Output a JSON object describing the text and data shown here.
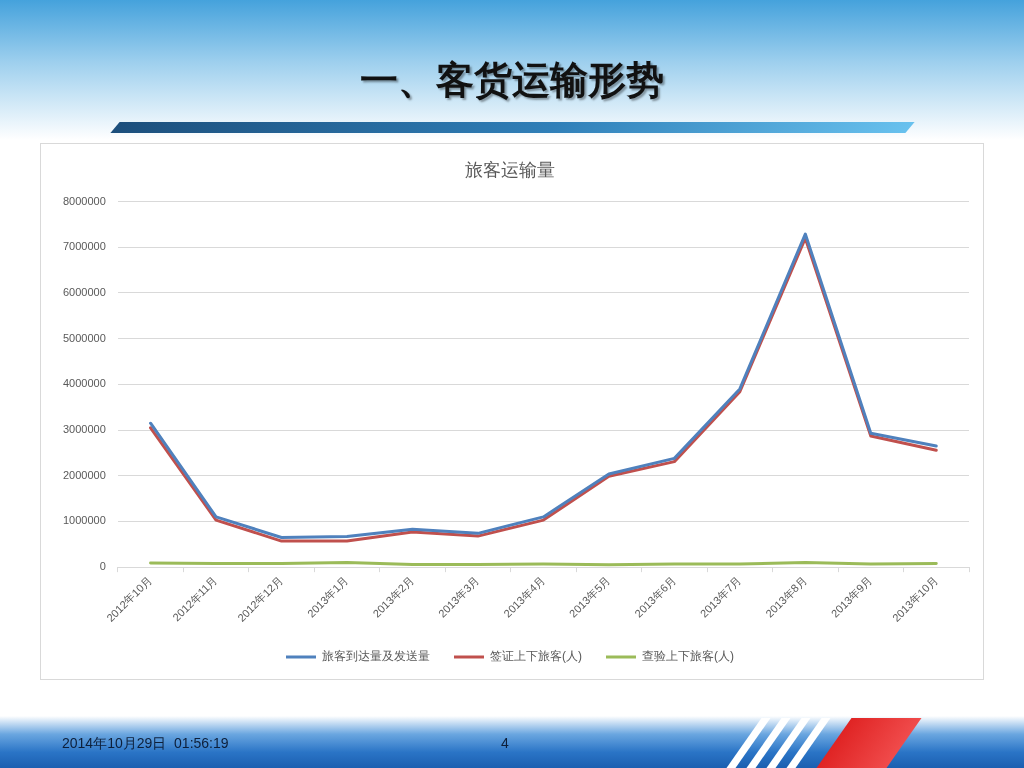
{
  "chart_data": {
    "type": "line",
    "title": "一、客货运输形势",
    "subtitle": "旅客运输量",
    "categories": [
      "2012年10月",
      "2012年11月",
      "2012年12月",
      "2013年1月",
      "2013年2月",
      "2013年3月",
      "2013年4月",
      "2013年5月",
      "2013年6月",
      "2013年7月",
      "2013年8月",
      "2013年9月",
      "2013年10月"
    ],
    "series": [
      {
        "name": "旅客到达量及发送量",
        "color": "#4f81bd",
        "values": [
          3150000,
          1100000,
          650000,
          670000,
          830000,
          740000,
          1100000,
          2040000,
          2380000,
          3900000,
          7290000,
          2930000,
          2650000
        ]
      },
      {
        "name": "签证上下旅客(人)",
        "color": "#c0504d",
        "values": [
          3050000,
          1030000,
          570000,
          570000,
          770000,
          680000,
          1030000,
          1990000,
          2310000,
          3840000,
          7200000,
          2870000,
          2560000
        ]
      },
      {
        "name": "查验上下旅客(人)",
        "color": "#9bbb59",
        "values": [
          90000,
          80000,
          80000,
          100000,
          60000,
          60000,
          70000,
          50000,
          70000,
          70000,
          100000,
          70000,
          80000
        ]
      }
    ],
    "ylim": [
      0,
      8000000
    ],
    "yticks": [
      0,
      1000000,
      2000000,
      3000000,
      4000000,
      5000000,
      6000000,
      7000000,
      8000000
    ],
    "grid": "y",
    "legend": "bottom",
    "marker": "none",
    "annotations": [
      "2014年10月29日  01:56:19",
      "4"
    ]
  }
}
